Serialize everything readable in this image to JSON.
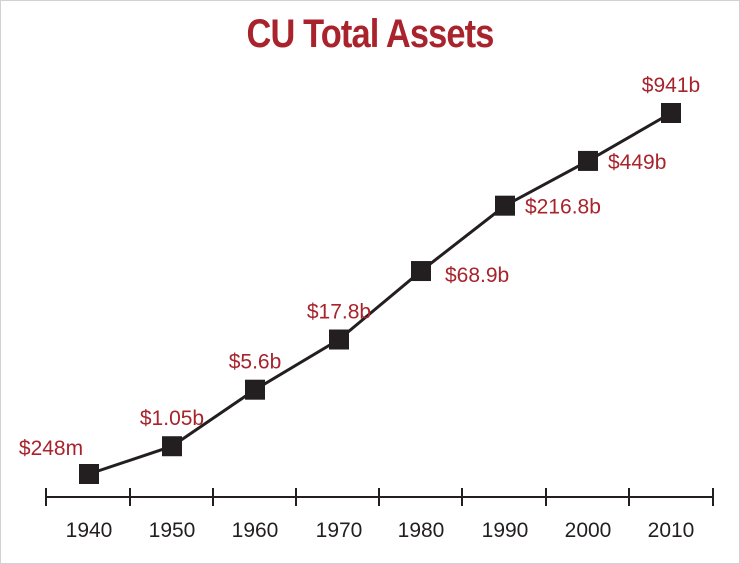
{
  "chart_data": {
    "type": "line",
    "title": "CU Total Assets",
    "xlabel": "",
    "ylabel": "",
    "categories": [
      "1940",
      "1950",
      "1960",
      "1970",
      "1980",
      "1990",
      "2000",
      "2010"
    ],
    "series": [
      {
        "values_billions": [
          0.248,
          1.05,
          5.6,
          17.8,
          68.9,
          216.8,
          449,
          941
        ],
        "labels": [
          "$248m",
          "$1.05b",
          "$5.6b",
          "$17.8b",
          "$68.9b",
          "$216.8b",
          "$449b",
          "$941b"
        ]
      }
    ],
    "grid": false,
    "y_axis_shown": false,
    "colors": {
      "title": "#a8232c",
      "labels": "#a8232c",
      "line": "#231f20",
      "markers": "#231f20"
    }
  }
}
